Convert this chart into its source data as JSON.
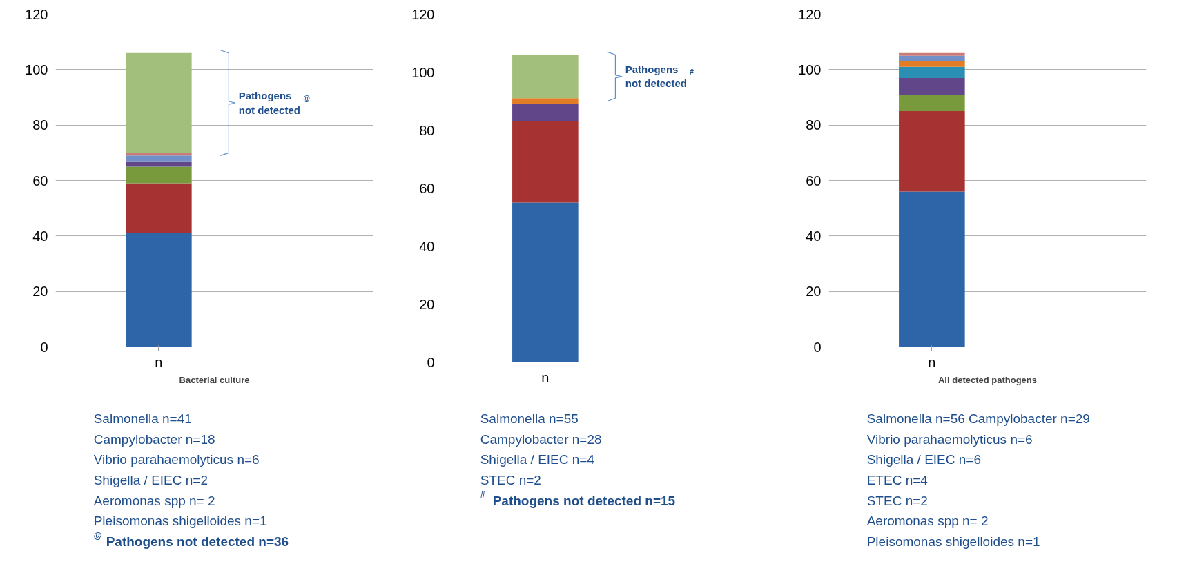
{
  "chart_data": [
    {
      "type": "bar",
      "stacked": true,
      "categories": [
        "n"
      ],
      "xlabel": "Bacterial culture",
      "ylim": [
        0,
        120
      ],
      "yticks": [
        0,
        20,
        40,
        60,
        80,
        100,
        120
      ],
      "grid": "y",
      "series": [
        {
          "color": "#2e64a8",
          "values": [
            41
          ]
        },
        {
          "color": "#a63331",
          "values": [
            18
          ]
        },
        {
          "color": "#789a3c",
          "values": [
            6
          ]
        },
        {
          "color": "#61478a",
          "values": [
            2
          ]
        },
        {
          "color": "#7190c8",
          "values": [
            2
          ]
        },
        {
          "color": "#c97b7a",
          "values": [
            1
          ]
        },
        {
          "color": "#a3bf7c",
          "values": [
            36
          ]
        }
      ],
      "annotations": [
        "Pathogens\nnot detected$^{@}$",
        "Salmonella n=41",
        "Campylobacter n=18",
        "Vibrio parahaemolyticus n=6",
        "Shigella / EIEC n=2",
        "Aeromonas spp n= 2",
        "Pleisomonas shigelloides n=1",
        "$^{@}$ Pathogens not detected n=36"
      ]
    },
    {
      "type": "bar",
      "stacked": true,
      "categories": [
        "n"
      ],
      "ylim": [
        0,
        120
      ],
      "yticks": [
        0,
        20,
        40,
        60,
        80,
        100,
        120
      ],
      "grid": "y",
      "series": [
        {
          "color": "#2e64a8",
          "values": [
            55
          ]
        },
        {
          "color": "#a63331",
          "values": [
            28
          ]
        },
        {
          "color": "#61478a",
          "values": [
            6
          ]
        },
        {
          "color": "#e27c25",
          "values": [
            2
          ]
        },
        {
          "color": "#a3bf7c",
          "values": [
            15
          ]
        }
      ],
      "annotations": [
        "Pathogens\nnot detected$^{#}$",
        "Salmonella  n=55",
        "Campylobacter n=28",
        "Shigella / EIEC n=4",
        "STEC n=2",
        "$^{#}$ Pathogens not detected n=15"
      ]
    },
    {
      "type": "bar",
      "stacked": true,
      "categories": [
        "n"
      ],
      "xlabel": "All detected pathogens",
      "ylim": [
        0,
        120
      ],
      "yticks": [
        0,
        20,
        40,
        60,
        80,
        100,
        120
      ],
      "grid": "y",
      "series": [
        {
          "color": "#2e64a8",
          "values": [
            56
          ]
        },
        {
          "color": "#a63331",
          "values": [
            29
          ]
        },
        {
          "color": "#789a3c",
          "values": [
            6
          ]
        },
        {
          "color": "#61478a",
          "values": [
            6
          ]
        },
        {
          "color": "#2a8fb2",
          "values": [
            4
          ]
        },
        {
          "color": "#e27c25",
          "values": [
            2
          ]
        },
        {
          "color": "#7190c8",
          "values": [
            2
          ]
        },
        {
          "color": "#c97b7a",
          "values": [
            1
          ]
        }
      ],
      "annotations": [
        "Salmonella n=56 Campylobacter n=29",
        "Vibrio parahaemolyticus n=6",
        "Shigella / EIEC n=6",
        "ETEC n=4",
        "STEC n=2",
        "Aeromonas spp n= 2",
        "Pleisomonas shigelloides n=1"
      ]
    }
  ]
}
